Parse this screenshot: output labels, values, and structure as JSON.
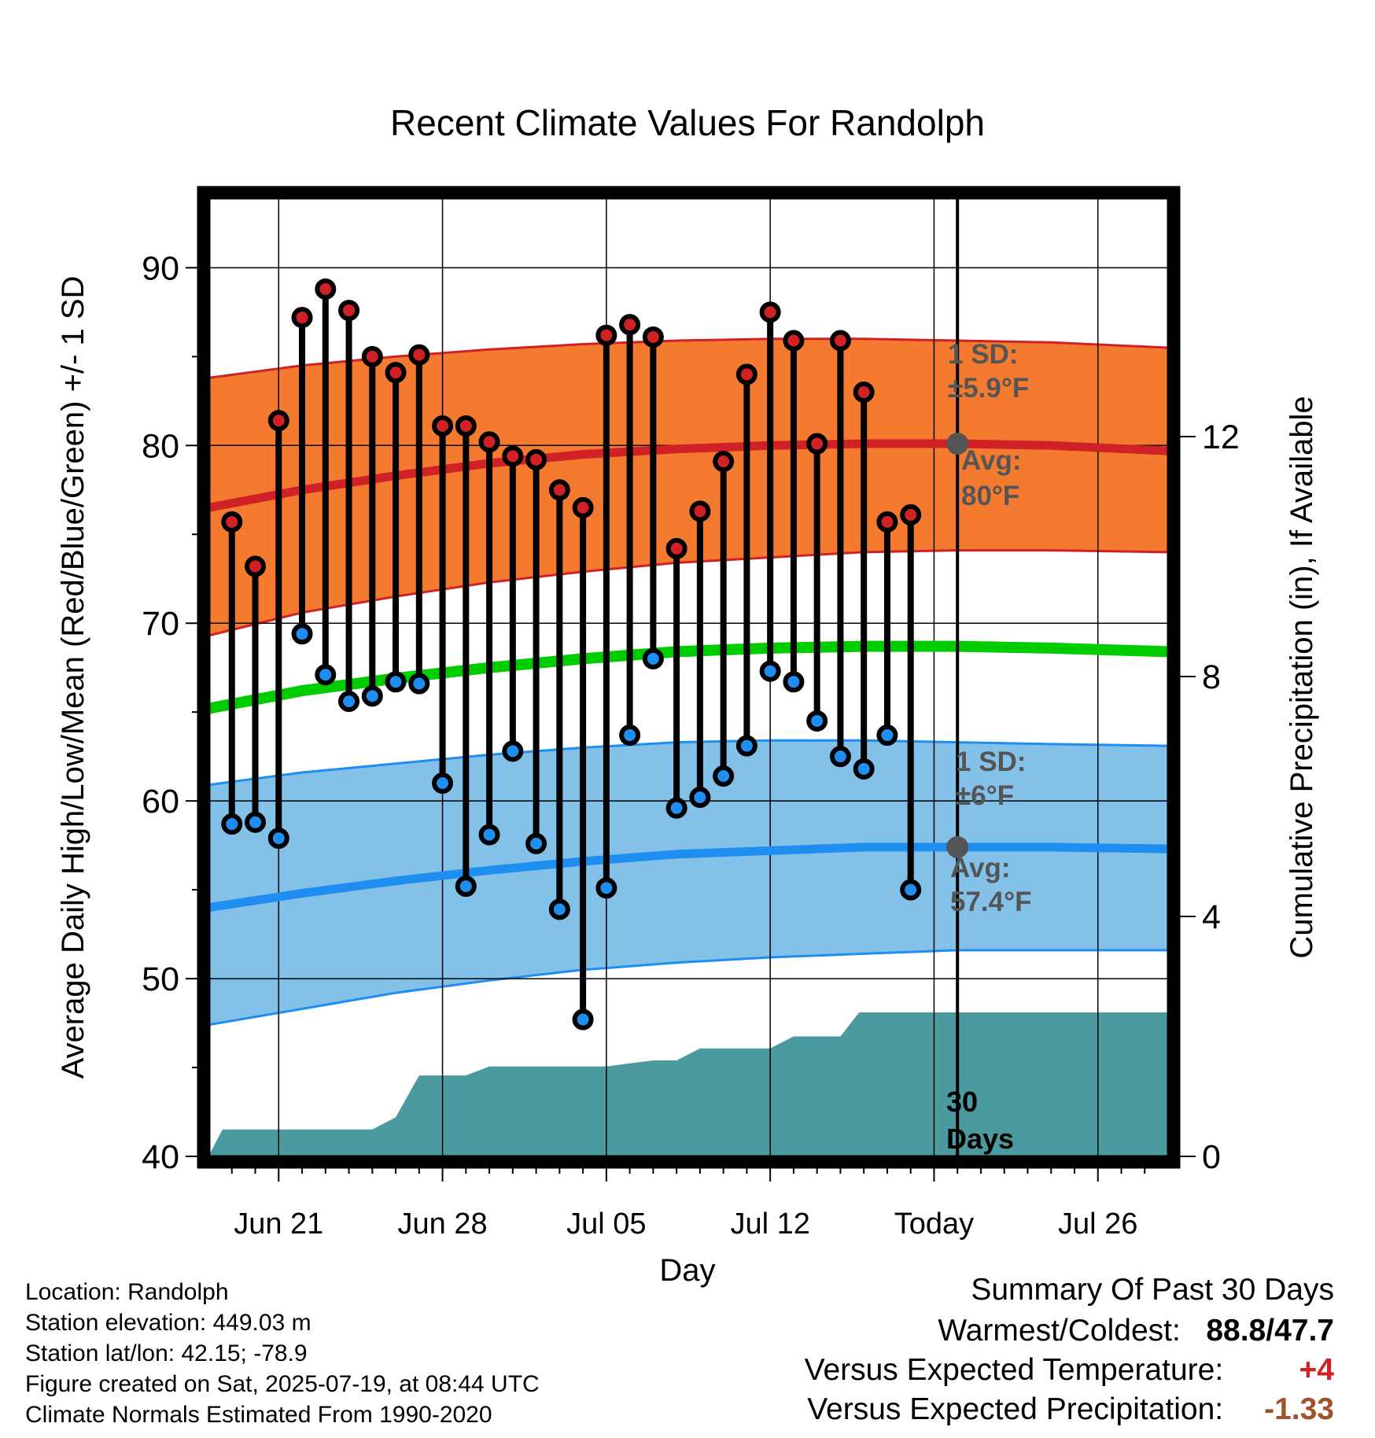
{
  "chart_data": {
    "type": "line",
    "title": "Recent Climate Values For Randolph",
    "xlabel": "Day",
    "ylabel": "Average Daily High/Low/Mean (Red/Blue/Green) +/- 1 SD",
    "y2label": "Cumulative Precipitation (in), If Available",
    "ylim": [
      40,
      94
    ],
    "y2lim": [
      0,
      16
    ],
    "yticks": [
      "40",
      "50",
      "60",
      "70",
      "80",
      "90"
    ],
    "y2ticks": [
      "0",
      "4",
      "8",
      "12"
    ],
    "x_start_date": "2025-06-17",
    "xlim_days": [
      0,
      41
    ],
    "today_day": 32,
    "xticks": [
      {
        "day": 3,
        "label": "Jun 21"
      },
      {
        "day": 10,
        "label": "Jun 28"
      },
      {
        "day": 17,
        "label": "Jul 05"
      },
      {
        "day": 24,
        "label": "Jul 12"
      },
      {
        "day": 31,
        "label": "Today"
      },
      {
        "day": 38,
        "label": "Jul 26"
      }
    ],
    "grid": true,
    "colors": {
      "high_band": "#f47a30",
      "high_line": "#d02226",
      "low_band": "#83c1e8",
      "low_line": "#1e8ef0",
      "mean_line": "#00cc00",
      "precip": "#4a9aa0",
      "high_marker": "#d02226",
      "low_marker": "#1e8ef0",
      "avg_dot": "#555555",
      "annotation": "#555555"
    },
    "normals": {
      "days": [
        0,
        4,
        8,
        12,
        16,
        20,
        24,
        28,
        32,
        36,
        41
      ],
      "high_avg": [
        76.5,
        77.5,
        78.3,
        79.0,
        79.5,
        79.8,
        80.0,
        80.1,
        80.1,
        80.0,
        79.7
      ],
      "high_sd_upper": [
        83.8,
        84.5,
        85.0,
        85.4,
        85.7,
        85.9,
        86.0,
        86.0,
        85.9,
        85.8,
        85.5
      ],
      "high_sd_lower": [
        69.3,
        70.6,
        71.5,
        72.3,
        72.9,
        73.4,
        73.7,
        74.0,
        74.1,
        74.1,
        74.0
      ],
      "low_avg": [
        54.0,
        54.8,
        55.5,
        56.1,
        56.6,
        57.0,
        57.2,
        57.4,
        57.4,
        57.4,
        57.3
      ],
      "low_sd_upper": [
        60.9,
        61.6,
        62.1,
        62.6,
        63.0,
        63.3,
        63.4,
        63.4,
        63.3,
        63.2,
        63.1
      ],
      "low_sd_lower": [
        47.4,
        48.3,
        49.2,
        49.9,
        50.5,
        50.9,
        51.2,
        51.4,
        51.6,
        51.6,
        51.6
      ],
      "mean_avg": [
        65.2,
        66.2,
        66.9,
        67.5,
        68.0,
        68.4,
        68.6,
        68.7,
        68.7,
        68.6,
        68.4
      ]
    },
    "observed": {
      "days": [
        1,
        2,
        3,
        4,
        5,
        6,
        7,
        8,
        9,
        10,
        11,
        12,
        13,
        14,
        15,
        16,
        17,
        18,
        19,
        20,
        21,
        22,
        23,
        24,
        25,
        26,
        27,
        28,
        29,
        30
      ],
      "high": [
        75.7,
        73.2,
        81.4,
        87.2,
        88.8,
        87.6,
        85.0,
        84.1,
        85.1,
        81.1,
        81.1,
        80.2,
        79.4,
        79.2,
        77.5,
        76.5,
        86.2,
        86.8,
        86.1,
        74.2,
        76.3,
        79.1,
        84.0,
        87.5,
        85.9,
        80.1,
        85.9,
        83.0,
        75.7,
        76.1
      ],
      "low": [
        58.7,
        58.8,
        57.9,
        69.4,
        67.1,
        65.6,
        65.9,
        66.7,
        66.6,
        61.0,
        55.2,
        58.1,
        62.8,
        57.6,
        53.9,
        47.7,
        55.1,
        63.7,
        68.0,
        59.6,
        60.2,
        61.4,
        63.1,
        67.3,
        66.7,
        64.5,
        62.5,
        61.8,
        63.7,
        55.0
      ]
    },
    "precipitation": {
      "days": [
        0,
        0.6,
        1,
        3,
        4,
        6,
        7,
        8,
        9,
        10,
        11,
        12,
        13,
        17,
        18,
        19,
        20,
        21,
        22,
        23,
        24,
        25,
        26,
        27,
        27.8,
        28,
        41
      ],
      "cumulative": [
        0,
        0.45,
        0.45,
        0.45,
        0.45,
        0.45,
        0.45,
        0.65,
        1.35,
        1.35,
        1.35,
        1.5,
        1.5,
        1.5,
        1.55,
        1.6,
        1.6,
        1.8,
        1.8,
        1.8,
        1.8,
        2.0,
        2.0,
        2.0,
        2.4,
        2.4,
        2.4
      ]
    },
    "annotations": {
      "high_sd_label": "1 SD:",
      "high_sd_value": "±5.9°F",
      "high_avg_label": "Avg:",
      "high_avg_value": "80°F",
      "low_sd_label": "1 SD:",
      "low_sd_value": "±6°F",
      "low_avg_label": "Avg:",
      "low_avg_value": "57.4°F",
      "period_number": "30",
      "period_unit": "Days"
    }
  },
  "station_info": {
    "location": "Location: Randolph",
    "elevation": "Station elevation: 449.03 m",
    "latlon": "Station lat/lon: 42.15; -78.9",
    "created": "Figure created on Sat, 2025-07-19, at 08:44 UTC",
    "normals": "Climate Normals Estimated From 1990-2020"
  },
  "summary": {
    "title": "Summary Of Past 30 Days",
    "warm_cold_label": "Warmest/Coldest:",
    "warmest": "88.8",
    "separator": "/",
    "coldest": "47.7",
    "temp_label": "Versus Expected Temperature:",
    "temp_value": "+4",
    "temp_color": "#d02226",
    "precip_label": "Versus Expected Precipitation:",
    "precip_value": "-1.33",
    "precip_color": "#a0522d"
  }
}
